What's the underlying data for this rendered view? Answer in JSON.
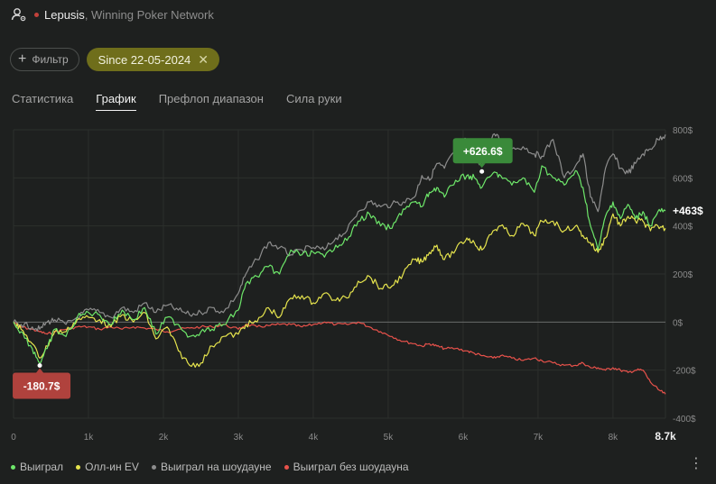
{
  "header": {
    "player_name": "Lepusis",
    "network": ", Winning Poker Network"
  },
  "filters": {
    "filter_button_label": "Фильтр",
    "date_chip_label": "Since 22-05-2024"
  },
  "tabs": [
    {
      "label": "Статистика",
      "active": false
    },
    {
      "label": "График",
      "active": true
    },
    {
      "label": "Префлоп диапазон",
      "active": false
    },
    {
      "label": "Сила руки",
      "active": false
    }
  ],
  "chart_data": {
    "type": "line",
    "x_ticks": [
      "0",
      "1k",
      "2k",
      "3k",
      "4k",
      "5k",
      "6k",
      "7k",
      "8k",
      "8.7k"
    ],
    "y_ticks": [
      "800$",
      "600$",
      "400$",
      "200$",
      "0$",
      "-200$",
      "-400$"
    ],
    "xlim": [
      0,
      8700
    ],
    "ylim": [
      -400,
      800
    ],
    "grid": true,
    "legend_position": "bottom-left",
    "annotations": {
      "max_label": "+626.6$",
      "min_label": "-180.7$",
      "end_label": "+463$"
    },
    "series": [
      {
        "name": "Выиграл",
        "color": "#6ee76a",
        "x": [
          0,
          100,
          250,
          350,
          450,
          550,
          700,
          850,
          1000,
          1150,
          1300,
          1450,
          1600,
          1750,
          1900,
          2050,
          2200,
          2350,
          2500,
          2650,
          2800,
          3000,
          3100,
          3250,
          3400,
          3550,
          3700,
          3850,
          4000,
          4150,
          4300,
          4450,
          4600,
          4750,
          4900,
          5050,
          5200,
          5350,
          5450,
          5550,
          5650,
          5750,
          5900,
          6050,
          6150,
          6250,
          6400,
          6500,
          6650,
          6800,
          6950,
          7050,
          7200,
          7350,
          7500,
          7600,
          7700,
          7800,
          7900,
          8000,
          8100,
          8200,
          8300,
          8400,
          8500,
          8600,
          8700
        ],
        "y": [
          0,
          -40,
          -110,
          -170,
          -110,
          -30,
          -60,
          20,
          40,
          30,
          -10,
          50,
          10,
          60,
          -50,
          20,
          -10,
          -60,
          -40,
          -30,
          -10,
          50,
          160,
          190,
          230,
          200,
          300,
          280,
          290,
          270,
          320,
          340,
          420,
          450,
          400,
          390,
          470,
          500,
          480,
          540,
          560,
          520,
          590,
          610,
          600,
          560,
          620,
          610,
          570,
          600,
          540,
          650,
          600,
          570,
          630,
          560,
          400,
          300,
          440,
          500,
          430,
          490,
          430,
          460,
          400,
          460,
          463
        ]
      },
      {
        "name": "Олл-ин EV",
        "color": "#e6e44d",
        "x": [
          0,
          100,
          250,
          350,
          450,
          550,
          700,
          850,
          1000,
          1150,
          1300,
          1450,
          1600,
          1750,
          1900,
          2050,
          2200,
          2350,
          2500,
          2650,
          2800,
          3000,
          3100,
          3250,
          3400,
          3550,
          3700,
          3850,
          4000,
          4150,
          4300,
          4450,
          4600,
          4750,
          4900,
          5050,
          5200,
          5350,
          5450,
          5550,
          5650,
          5750,
          5900,
          6050,
          6150,
          6250,
          6400,
          6500,
          6650,
          6800,
          6950,
          7050,
          7200,
          7350,
          7500,
          7600,
          7700,
          7800,
          7900,
          8000,
          8100,
          8200,
          8300,
          8400,
          8500,
          8600,
          8700
        ],
        "y": [
          0,
          -30,
          -90,
          -150,
          -100,
          -40,
          -40,
          10,
          20,
          10,
          -20,
          30,
          0,
          40,
          -70,
          -20,
          -120,
          -180,
          -170,
          -100,
          -60,
          -50,
          -10,
          0,
          60,
          20,
          100,
          110,
          80,
          120,
          90,
          100,
          170,
          190,
          140,
          150,
          200,
          260,
          250,
          290,
          320,
          260,
          300,
          350,
          330,
          300,
          380,
          400,
          360,
          410,
          360,
          420,
          420,
          380,
          400,
          360,
          330,
          290,
          350,
          450,
          400,
          440,
          420,
          420,
          380,
          400,
          390
        ]
      },
      {
        "name": "Выиграл на шоудауне",
        "color": "#8d8d8d",
        "x": [
          0,
          100,
          250,
          350,
          450,
          550,
          700,
          850,
          1000,
          1150,
          1300,
          1450,
          1600,
          1750,
          1900,
          2050,
          2200,
          2350,
          2500,
          2650,
          2800,
          3000,
          3100,
          3250,
          3400,
          3550,
          3700,
          3850,
          4000,
          4150,
          4300,
          4450,
          4600,
          4750,
          4900,
          5050,
          5200,
          5350,
          5450,
          5550,
          5650,
          5750,
          5900,
          6050,
          6150,
          6250,
          6400,
          6500,
          6650,
          6800,
          6950,
          7050,
          7200,
          7350,
          7500,
          7600,
          7700,
          7800,
          7900,
          8000,
          8100,
          8200,
          8300,
          8400,
          8500,
          8600,
          8700
        ],
        "y": [
          0,
          -10,
          -20,
          -30,
          0,
          10,
          -10,
          20,
          50,
          40,
          20,
          60,
          40,
          80,
          40,
          70,
          50,
          30,
          40,
          60,
          40,
          120,
          200,
          260,
          330,
          310,
          280,
          300,
          310,
          300,
          350,
          380,
          460,
          500,
          480,
          490,
          500,
          520,
          610,
          590,
          660,
          640,
          720,
          760,
          700,
          650,
          780,
          760,
          720,
          730,
          700,
          690,
          760,
          600,
          650,
          700,
          520,
          460,
          640,
          700,
          640,
          620,
          660,
          700,
          720,
          760,
          780
        ]
      },
      {
        "name": "Выиграл без шоудауна",
        "color": "#e8524b",
        "x": [
          0,
          100,
          250,
          350,
          450,
          550,
          700,
          850,
          1000,
          1150,
          1300,
          1450,
          1600,
          1750,
          1900,
          2050,
          2200,
          2350,
          2500,
          2650,
          2800,
          3000,
          3100,
          3250,
          3400,
          3550,
          3700,
          3850,
          4000,
          4150,
          4300,
          4450,
          4600,
          4750,
          4900,
          5050,
          5200,
          5350,
          5450,
          5550,
          5650,
          5750,
          5900,
          6050,
          6150,
          6250,
          6400,
          6500,
          6650,
          6800,
          6950,
          7050,
          7200,
          7350,
          7500,
          7600,
          7700,
          7800,
          7900,
          8000,
          8100,
          8200,
          8300,
          8400,
          8500,
          8600,
          8700
        ],
        "y": [
          0,
          -20,
          -30,
          -40,
          -50,
          -40,
          -30,
          -20,
          -20,
          -30,
          -20,
          -30,
          -20,
          -25,
          -30,
          -40,
          -30,
          -25,
          -20,
          -20,
          -10,
          -30,
          -10,
          -20,
          -15,
          -10,
          -10,
          -20,
          -10,
          0,
          -10,
          -10,
          0,
          -20,
          -40,
          -60,
          -80,
          -90,
          -100,
          -90,
          -100,
          -110,
          -110,
          -120,
          -130,
          -140,
          -150,
          -140,
          -150,
          -160,
          -150,
          -160,
          -170,
          -180,
          -180,
          -170,
          -190,
          -190,
          -200,
          -190,
          -200,
          -210,
          -200,
          -200,
          -250,
          -280,
          -300
        ]
      }
    ]
  },
  "colors": {
    "accent_chip": "#6f6e1b",
    "max_badge": "#3a8a3a",
    "min_badge": "#b0423d"
  }
}
